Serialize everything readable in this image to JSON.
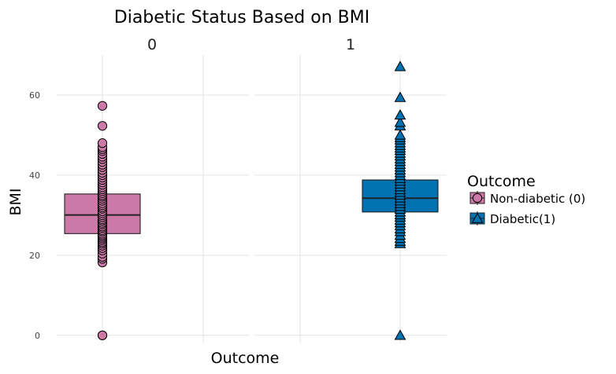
{
  "chart_data": {
    "type": "box",
    "title": "Diabetic Status Based on BMI",
    "xlabel": "Outcome",
    "ylabel": "BMI",
    "ylim": [
      -2,
      70
    ],
    "yticks": [
      0,
      20,
      40,
      60
    ],
    "grid": true,
    "legend": {
      "title": "Outcome",
      "position": "right",
      "entries": [
        {
          "label": "Non-diabetic (0)",
          "color": "#cc79a7",
          "shape": "circle"
        },
        {
          "label": "Diabetic(1)",
          "color": "#0072b2",
          "shape": "triangle"
        }
      ]
    },
    "facets": [
      {
        "label": "0",
        "color": "#cc79a7",
        "shape": "circle",
        "box": {
          "q1": 25.4,
          "median": 30.05,
          "q3": 35.3
        },
        "points": [
          0,
          0,
          18.2,
          19.1,
          19.6,
          20.4,
          21.2,
          21.8,
          22.4,
          22.9,
          23.3,
          23.8,
          24.2,
          24.6,
          25.0,
          25.4,
          25.9,
          26.3,
          26.8,
          27.2,
          27.7,
          28.1,
          28.6,
          29.0,
          29.5,
          30.0,
          30.5,
          31.0,
          31.6,
          32.0,
          32.5,
          33.0,
          33.6,
          34.1,
          34.6,
          35.0,
          35.5,
          36.0,
          36.5,
          37.0,
          37.6,
          38.2,
          38.8,
          39.4,
          40.0,
          40.6,
          41.3,
          42.0,
          42.6,
          43.3,
          44.0,
          44.6,
          45.3,
          46.0,
          46.5,
          47.0,
          48.0,
          52.3,
          57.3
        ]
      },
      {
        "label": "1",
        "color": "#0072b2",
        "shape": "triangle",
        "box": {
          "q1": 30.8,
          "median": 34.25,
          "q3": 38.8
        },
        "points": [
          0,
          22.9,
          23.5,
          24.2,
          25.0,
          25.9,
          26.6,
          27.4,
          28.1,
          28.8,
          29.5,
          30.1,
          30.8,
          31.5,
          32.2,
          32.9,
          33.6,
          34.3,
          35.0,
          35.7,
          36.4,
          37.1,
          37.8,
          38.5,
          39.2,
          39.9,
          40.6,
          41.3,
          42.0,
          42.7,
          43.4,
          44.1,
          44.8,
          45.5,
          46.2,
          46.8,
          47.4,
          48.1,
          48.8,
          49.4,
          50.0,
          52.3,
          53.2,
          55.0,
          59.4,
          67.1
        ]
      }
    ]
  }
}
